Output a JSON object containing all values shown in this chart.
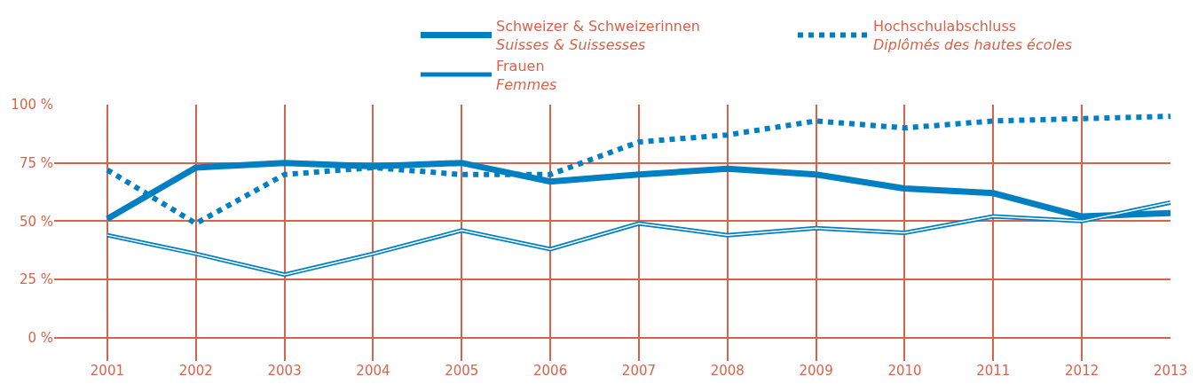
{
  "chart_data": {
    "type": "line",
    "x": [
      2001,
      2002,
      2003,
      2004,
      2005,
      2006,
      2007,
      2008,
      2009,
      2010,
      2011,
      2012,
      2013
    ],
    "series": [
      {
        "name": "Schweizer & Schweizerinnen\nSuisses & Suissesses",
        "color": "#0080c3",
        "line_style": "solid",
        "values": [
          51,
          73,
          75,
          73.5,
          75,
          67,
          70,
          72.5,
          70,
          64,
          62,
          52,
          53.5
        ]
      },
      {
        "name": "Hochschulabschluss\nDiplômés des hautes écoles",
        "color": "#0080c3",
        "line_style": "dotted",
        "values": [
          72,
          49,
          70,
          73,
          70,
          70,
          84,
          87,
          93,
          90,
          93,
          94,
          95
        ]
      },
      {
        "name": "Frauen\nFemmes",
        "color": "#0080c3",
        "line_style": "solid",
        "values": [
          44,
          36,
          27,
          36,
          46,
          38,
          49,
          44,
          47,
          45,
          52,
          50,
          58
        ]
      }
    ],
    "xlim": [
      2000.4,
      2013
    ],
    "xticks": [
      2001,
      2002,
      2003,
      2004,
      2005,
      2006,
      2007,
      2008,
      2009,
      2010,
      2011,
      2012,
      2013
    ],
    "ylim": [
      -10,
      100
    ],
    "yticks": [
      {
        "value": 0,
        "label": "0 %"
      },
      {
        "value": 25,
        "label": "25 %"
      },
      {
        "value": 50,
        "label": "50 %"
      },
      {
        "value": 75,
        "label": "75 %"
      },
      {
        "value": 100,
        "label": "100 %"
      }
    ],
    "grid": true,
    "legend": "top",
    "marker": "none"
  }
}
